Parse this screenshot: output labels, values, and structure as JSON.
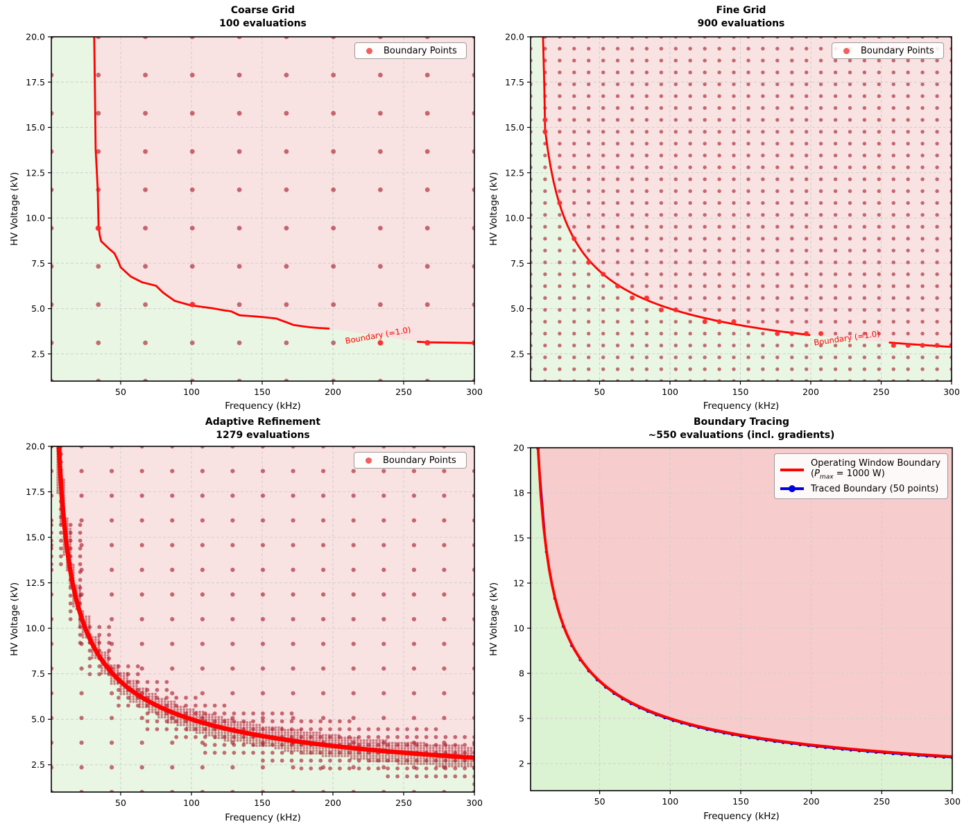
{
  "figure": {
    "xlabel": "Frequency (kHz)",
    "ylabel": "HV Voltage (kV)",
    "xtick_labels": [
      "50",
      "100",
      "150",
      "200",
      "250",
      "300"
    ],
    "xtick_values": [
      50,
      100,
      150,
      200,
      250,
      300
    ],
    "ytick_values": [
      2.5,
      5,
      7.5,
      10,
      12.5,
      15,
      17.5,
      20
    ]
  },
  "colors": {
    "curve": "#ff0000",
    "dot": "#a51928",
    "marker": "#ff2a2a",
    "legend_dot": "#f25f5f",
    "pink": "#f9e2e2",
    "green": "#e9f6e3",
    "pink_trace": "#f7cccc",
    "green_trace": "#dcf3d3",
    "blue": "#0000dd",
    "gridline": "#cfcfcf"
  },
  "panels": [
    {
      "id": "coarse",
      "title": "Coarse Grid",
      "subtitle": "100 evaluations",
      "legend_label": "Boundary Points",
      "contour_label": "Boundary (=1.0)",
      "ytick_labels": [
        "2.5",
        "5.0",
        "7.5",
        "10.0",
        "12.5",
        "15.0",
        "17.5",
        "20.0"
      ]
    },
    {
      "id": "fine",
      "title": "Fine Grid",
      "subtitle": "900 evaluations",
      "legend_label": "Boundary Points",
      "contour_label": "Boundary (=1.0)",
      "ytick_labels": [
        "2.5",
        "5.0",
        "7.5",
        "10.0",
        "12.5",
        "15.0",
        "17.5",
        "20.0"
      ]
    },
    {
      "id": "adaptive",
      "title": "Adaptive Refinement",
      "subtitle": "1279 evaluations",
      "legend_label": "Boundary Points",
      "ytick_labels": [
        "2.5",
        "5.0",
        "7.5",
        "10.0",
        "12.5",
        "15.0",
        "17.5",
        "20.0"
      ]
    },
    {
      "id": "tracing",
      "title": "Boundary Tracing",
      "subtitle": "~550 evaluations (incl. gradients)",
      "legend_line1": "Operating Window Boundary",
      "legend_l2_open": "(",
      "legend_l2_p": "P",
      "legend_l2_sub": "max",
      "legend_l2_rest": " = 1000 W)",
      "legend_row2": "Traced Boundary (50 points)",
      "ytick_labels": [
        "2",
        "5",
        "8",
        "10",
        "12",
        "15",
        "18",
        "20"
      ]
    }
  ],
  "chart_data": [
    {
      "panel": "Coarse Grid",
      "type": "scatter",
      "evaluations": 100,
      "xlabel": "Frequency (kHz)",
      "ylabel": "HV Voltage (kV)",
      "xlim": [
        1,
        300
      ],
      "ylim": [
        1,
        20
      ],
      "grid": {
        "nx": 10,
        "ny": 10
      },
      "boundary_points": [
        [
          34.2,
          9.44
        ],
        [
          100.7,
          5.22
        ],
        [
          233.6,
          3.11
        ],
        [
          266.8,
          3.11
        ],
        [
          300,
          3.11
        ]
      ],
      "contour_level": 1.0,
      "boundary_polyline_a": [
        [
          31.3,
          20
        ],
        [
          32.0,
          16.0
        ],
        [
          32.3,
          13.8
        ],
        [
          33.8,
          11.6
        ],
        [
          34.4,
          9.6
        ],
        [
          35.2,
          9.05
        ],
        [
          36.2,
          8.72
        ],
        [
          41.6,
          8.32
        ],
        [
          45.6,
          8.05
        ],
        [
          48.3,
          7.62
        ],
        [
          50.0,
          7.28
        ],
        [
          57.1,
          6.77
        ],
        [
          65.2,
          6.45
        ],
        [
          75.0,
          6.26
        ],
        [
          80.0,
          5.88
        ],
        [
          88.1,
          5.43
        ],
        [
          99.5,
          5.18
        ],
        [
          109,
          5.08
        ],
        [
          115,
          5.02
        ],
        [
          122,
          4.92
        ],
        [
          128,
          4.85
        ],
        [
          134,
          4.63
        ],
        [
          143,
          4.58
        ],
        [
          152,
          4.52
        ],
        [
          160,
          4.45
        ],
        [
          168,
          4.22
        ],
        [
          172,
          4.1
        ],
        [
          178,
          4.03
        ],
        [
          184,
          3.97
        ],
        [
          190,
          3.93
        ],
        [
          197,
          3.9
        ]
      ],
      "boundary_polyline_b": [
        [
          260,
          3.17
        ],
        [
          266.8,
          3.14
        ],
        [
          300,
          3.1
        ]
      ]
    },
    {
      "panel": "Fine Grid",
      "type": "scatter",
      "evaluations": 900,
      "xlabel": "Frequency (kHz)",
      "ylabel": "HV Voltage (kV)",
      "xlim": [
        1,
        300
      ],
      "ylim": [
        1,
        20
      ],
      "grid": {
        "nx": 30,
        "ny": 30
      },
      "boundary_points": [
        [
          11.31,
          14.76
        ],
        [
          11.31,
          15.41
        ],
        [
          21.62,
          10.83
        ],
        [
          31.93,
          8.86
        ],
        [
          42.24,
          7.55
        ],
        [
          52.55,
          6.9
        ],
        [
          62.86,
          6.24
        ],
        [
          73.17,
          5.59
        ],
        [
          83.48,
          5.59
        ],
        [
          93.79,
          4.93
        ],
        [
          104.1,
          4.93
        ],
        [
          124.72,
          4.28
        ],
        [
          135.03,
          4.28
        ],
        [
          145.34,
          4.28
        ],
        [
          176.28,
          3.62
        ],
        [
          186.59,
          3.62
        ],
        [
          196.9,
          3.62
        ],
        [
          207.21,
          3.62
        ],
        [
          258.76,
          2.97
        ],
        [
          269.07,
          2.97
        ],
        [
          279.38,
          2.97
        ],
        [
          289.69,
          2.97
        ],
        [
          300,
          2.97
        ]
      ],
      "contour_level": 1.0,
      "boundary_entry": [
        [
          9.8,
          20
        ],
        [
          10.7,
          17.4
        ],
        [
          11.31,
          14.87
        ]
      ],
      "label_gap_f": [
        199,
        256
      ]
    },
    {
      "panel": "Adaptive Refinement",
      "type": "scatter",
      "evaluations": 1279,
      "xlabel": "Frequency (kHz)",
      "ylabel": "HV Voltage (kV)",
      "xlim": [
        1,
        300
      ],
      "ylim": [
        1,
        20
      ],
      "base_grid": {
        "nx": 15,
        "ny": 15
      },
      "refinement_levels": 3,
      "refined_band_halfwidth_kv": [
        1.45,
        0.62
      ]
    },
    {
      "panel": "Boundary Tracing",
      "type": "line",
      "evaluations": "~550 (incl. gradients)",
      "xlabel": "Frequency (kHz)",
      "ylabel": "HV Voltage (kV)",
      "xlim": [
        1,
        300
      ],
      "ylim": [
        1,
        20
      ],
      "boundary_formula": "V = 50 / sqrt(f)  (P_max = 1000 W)",
      "traced_points_count": 50,
      "traced_f_range": [
        6.25,
        300
      ],
      "curve_samples": [
        [
          6.25,
          20.0
        ],
        [
          10,
          15.81
        ],
        [
          20,
          11.18
        ],
        [
          30,
          9.13
        ],
        [
          50,
          7.07
        ],
        [
          75,
          5.77
        ],
        [
          100,
          5.0
        ],
        [
          150,
          4.08
        ],
        [
          200,
          3.54
        ],
        [
          250,
          3.16
        ],
        [
          300,
          2.89
        ]
      ]
    }
  ]
}
